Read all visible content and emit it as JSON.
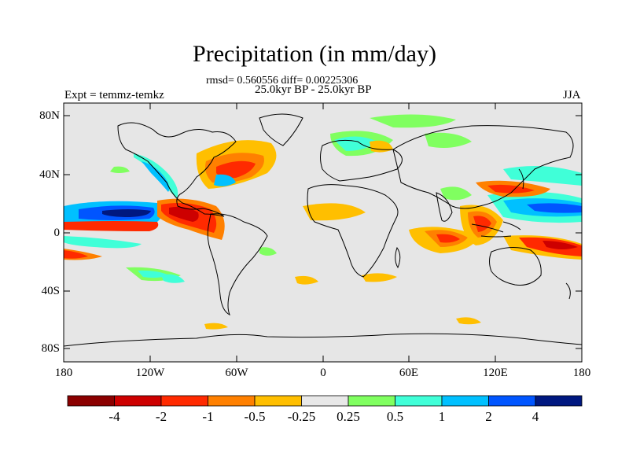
{
  "title": "Precipitation (in mm/day)",
  "stats": "rmsd= 0.560556 diff= 0.00225306",
  "period": "25.0kyr BP - 25.0kyr BP",
  "experiment": "Expt = temmz-temkz",
  "season": "JJA",
  "lat_ticks": [
    "80N",
    "40N",
    "0",
    "40S",
    "80S"
  ],
  "lon_ticks": [
    "180",
    "120W",
    "60W",
    "0",
    "60E",
    "120E",
    "180"
  ],
  "colorbar": {
    "labels": [
      "-4",
      "-2",
      "-1",
      "-0.5",
      "-0.25",
      "0.25",
      "0.5",
      "1",
      "2",
      "4"
    ],
    "colors": [
      "#8b0000",
      "#cd0000",
      "#ff2a00",
      "#ff8000",
      "#ffbf00",
      "#e8e8e8",
      "#80ff60",
      "#40ffd8",
      "#00c0ff",
      "#0055ff",
      "#001880"
    ]
  },
  "land_color": "#e6e6e6"
}
